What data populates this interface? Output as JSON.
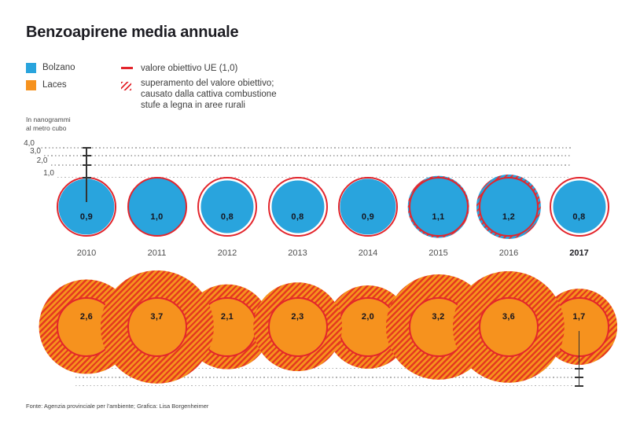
{
  "title": "Benzoapirene media annuale",
  "legend": {
    "series": [
      {
        "label": "Bolzano",
        "color": "#29a4dd"
      },
      {
        "label": "Laces",
        "color": "#f6921e"
      }
    ],
    "target_label": "valore obiettivo UE (1,0)",
    "exceed_label_lines": [
      "superamento del valore obiettivo;",
      "causato dalla cattiva combustione",
      "stufe a legna in aree rurali"
    ]
  },
  "axis": {
    "unit_lines": [
      "In nanogrammi",
      "al metro cubo"
    ],
    "tick_labels": [
      "4,0",
      "3,0",
      "2,0",
      "1,0"
    ]
  },
  "footer": "Fonte: Agenzia provinciale per l'ambiente; Grafica: Lisa Borgenheimer",
  "colors": {
    "bolzano_blue": "#29a4dd",
    "laces_orange": "#f6921e",
    "target_red": "#e3252c",
    "grid_dot": "#b3b3b3",
    "text_dark": "#1c1c22"
  },
  "chart_data": {
    "type": "proportional-circles",
    "title": "Benzoapirene media annuale",
    "unit": "nanogrammi al metro cubo",
    "scale": "area-proportional",
    "target_value": 1.0,
    "axis_ticks": [
      1.0,
      2.0,
      3.0,
      4.0
    ],
    "categories": [
      "2010",
      "2011",
      "2012",
      "2013",
      "2014",
      "2015",
      "2016",
      "2017"
    ],
    "highlight_category": "2017",
    "series": [
      {
        "name": "Bolzano",
        "values": [
          0.9,
          1.0,
          0.8,
          0.8,
          0.9,
          1.1,
          1.2,
          0.8
        ],
        "labels": [
          "0,9",
          "1,0",
          "0,8",
          "0,8",
          "0,9",
          "1,1",
          "1,2",
          "0,8"
        ]
      },
      {
        "name": "Laces",
        "values": [
          2.6,
          3.7,
          2.1,
          2.3,
          2.0,
          3.2,
          3.6,
          1.7
        ],
        "labels": [
          "2,6",
          "3,7",
          "2,1",
          "2,3",
          "2,0",
          "3,2",
          "3,6",
          "1,7"
        ]
      }
    ]
  }
}
